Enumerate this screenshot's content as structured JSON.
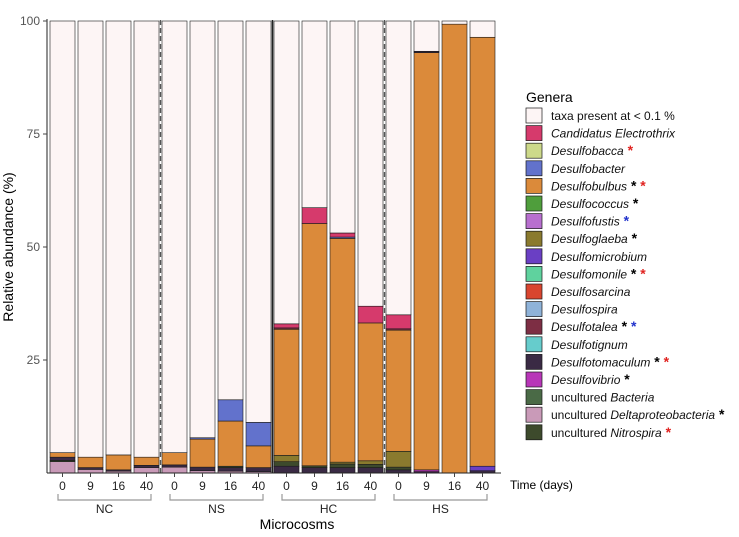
{
  "chart_data": {
    "type": "bar",
    "stacked": true,
    "xlabel": "Microcosms",
    "ylabel": "Relative abundance (%)",
    "time_label": "Time (days)",
    "ylim": [
      0,
      100
    ],
    "yticks": [
      25,
      50,
      75,
      100
    ],
    "groups": [
      "NC",
      "NS",
      "HC",
      "HS"
    ],
    "time_ticks": [
      "0",
      "9",
      "16",
      "40"
    ],
    "legend_title": "Genera",
    "legend": [
      {
        "key": "other",
        "label": "taxa present at < 0.1 %",
        "italic": "",
        "stars": [],
        "color": "#fdf5f5"
      },
      {
        "key": "candidatus",
        "label": "",
        "italic": "Candidatus Electrothrix",
        "stars": [],
        "color": "#d63a6c"
      },
      {
        "key": "desulfobacca",
        "label": "",
        "italic": "Desulfobacca",
        "stars": [
          "red"
        ],
        "color": "#cdd98a"
      },
      {
        "key": "desulfobacter",
        "label": "",
        "italic": "Desulfobacter",
        "stars": [],
        "color": "#6272cc"
      },
      {
        "key": "desulfobulbus",
        "label": "",
        "italic": "Desulfobulbus",
        "stars": [
          "black",
          "red"
        ],
        "color": "#db8a3a"
      },
      {
        "key": "desulfococcus",
        "label": "",
        "italic": "Desulfococcus",
        "stars": [
          "black"
        ],
        "color": "#4f9e3c"
      },
      {
        "key": "desulfofustis",
        "label": "",
        "italic": "Desulfofustis",
        "stars": [
          "blue"
        ],
        "color": "#b86fcf"
      },
      {
        "key": "desulfoglaeba",
        "label": "",
        "italic": "Desulfoglaeba",
        "stars": [
          "black"
        ],
        "color": "#8a7a2e"
      },
      {
        "key": "desulfomicrobium",
        "label": "",
        "italic": "Desulfomicrobium",
        "stars": [],
        "color": "#6a3fc4"
      },
      {
        "key": "desulfomonile",
        "label": "",
        "italic": "Desulfomonile",
        "stars": [
          "black",
          "red"
        ],
        "color": "#5fd29e"
      },
      {
        "key": "desulfosarcina",
        "label": "",
        "italic": "Desulfosarcina",
        "stars": [],
        "color": "#d9452f"
      },
      {
        "key": "desulfospira",
        "label": "",
        "italic": "Desulfospira",
        "stars": [],
        "color": "#8fb3d9"
      },
      {
        "key": "desulfotalea",
        "label": "",
        "italic": "Desulfotalea",
        "stars": [
          "black",
          "blue"
        ],
        "color": "#7d2e44"
      },
      {
        "key": "desulfotignum",
        "label": "",
        "italic": "Desulfotignum",
        "stars": [],
        "color": "#66cccc"
      },
      {
        "key": "desulfotomaculum",
        "label": "",
        "italic": "Desulfotomaculum",
        "stars": [
          "black",
          "red"
        ],
        "color": "#3a2a44"
      },
      {
        "key": "desulfovibrio",
        "label": "",
        "italic": "Desulfovibrio",
        "stars": [
          "black"
        ],
        "color": "#b836b8"
      },
      {
        "key": "unc_bacteria",
        "label": "uncultured ",
        "italic": "Bacteria",
        "stars": [],
        "color": "#4a6a46"
      },
      {
        "key": "unc_delta",
        "label": "uncultured ",
        "italic": "Deltaproteobacteria",
        "stars": [
          "black"
        ],
        "color": "#c99ab8"
      },
      {
        "key": "unc_nitrospira",
        "label": "uncultured ",
        "italic": "Nitrospira",
        "stars": [
          "red"
        ],
        "color": "#3d4a2c"
      }
    ],
    "bars": [
      {
        "group": "NC",
        "time": "0",
        "segments": [
          [
            "unc_delta",
            2.5
          ],
          [
            "unc_nitrospira",
            0.3
          ],
          [
            "desulfotomaculum",
            0.7
          ],
          [
            "desulfobulbus",
            1.0
          ],
          [
            "other",
            95.5
          ]
        ]
      },
      {
        "group": "NC",
        "time": "9",
        "segments": [
          [
            "unc_delta",
            0.8
          ],
          [
            "desulfotomaculum",
            0.4
          ],
          [
            "desulfobulbus",
            2.3
          ],
          [
            "other",
            96.5
          ]
        ]
      },
      {
        "group": "NC",
        "time": "16",
        "segments": [
          [
            "unc_delta",
            0.4
          ],
          [
            "desulfotomaculum",
            0.3
          ],
          [
            "desulfobulbus",
            3.3
          ],
          [
            "other",
            96.0
          ]
        ]
      },
      {
        "group": "NC",
        "time": "40",
        "segments": [
          [
            "unc_delta",
            1.2
          ],
          [
            "desulfotomaculum",
            0.5
          ],
          [
            "desulfobulbus",
            1.8
          ],
          [
            "other",
            96.5
          ]
        ]
      },
      {
        "group": "NS",
        "time": "0",
        "segments": [
          [
            "unc_delta",
            1.3
          ],
          [
            "desulfotomaculum",
            0.5
          ],
          [
            "desulfobulbus",
            2.7
          ],
          [
            "other",
            95.5
          ]
        ]
      },
      {
        "group": "NS",
        "time": "9",
        "segments": [
          [
            "unc_delta",
            0.5
          ],
          [
            "desulfotomaculum",
            0.8
          ],
          [
            "desulfobulbus",
            6.2
          ],
          [
            "desulfobacter",
            0.3
          ],
          [
            "other",
            92.2
          ]
        ]
      },
      {
        "group": "NS",
        "time": "16",
        "segments": [
          [
            "unc_delta",
            0.4
          ],
          [
            "desulfotomaculum",
            0.8
          ],
          [
            "unc_nitrospira",
            0.3
          ],
          [
            "desulfobulbus",
            10.0
          ],
          [
            "desulfobacter",
            4.7
          ],
          [
            "other",
            83.8
          ]
        ]
      },
      {
        "group": "NS",
        "time": "40",
        "segments": [
          [
            "unc_delta",
            0.3
          ],
          [
            "desulfotomaculum",
            0.9
          ],
          [
            "desulfobulbus",
            4.8
          ],
          [
            "desulfobacter",
            5.2
          ],
          [
            "other",
            88.8
          ]
        ]
      },
      {
        "group": "HC",
        "time": "0",
        "segments": [
          [
            "desulfotomaculum",
            1.5
          ],
          [
            "unc_nitrospira",
            1.0
          ],
          [
            "desulfoglaeba",
            1.4
          ],
          [
            "desulfobulbus",
            27.9
          ],
          [
            "desulfotalea",
            0.3
          ],
          [
            "candidatus",
            0.9
          ],
          [
            "other",
            67.0
          ]
        ]
      },
      {
        "group": "HC",
        "time": "9",
        "segments": [
          [
            "desulfotomaculum",
            1.2
          ],
          [
            "unc_nitrospira",
            0.4
          ],
          [
            "desulfobulbus",
            53.6
          ],
          [
            "candidatus",
            3.5
          ],
          [
            "other",
            41.3
          ]
        ]
      },
      {
        "group": "HC",
        "time": "16",
        "segments": [
          [
            "desulfotomaculum",
            1.2
          ],
          [
            "unc_nitrospira",
            0.8
          ],
          [
            "desulfoglaeba",
            0.4
          ],
          [
            "desulfobulbus",
            49.5
          ],
          [
            "desulfobacter",
            0.3
          ],
          [
            "candidatus",
            0.9
          ],
          [
            "other",
            46.9
          ]
        ]
      },
      {
        "group": "HC",
        "time": "40",
        "segments": [
          [
            "desulfotomaculum",
            1.2
          ],
          [
            "unc_nitrospira",
            0.7
          ],
          [
            "desulfoglaeba",
            0.8
          ],
          [
            "desulfobulbus",
            30.5
          ],
          [
            "candidatus",
            3.7
          ],
          [
            "other",
            63.1
          ]
        ]
      },
      {
        "group": "HS",
        "time": "0",
        "segments": [
          [
            "desulfotomaculum",
            0.7
          ],
          [
            "unc_nitrospira",
            0.6
          ],
          [
            "desulfoglaeba",
            3.5
          ],
          [
            "desulfobulbus",
            26.8
          ],
          [
            "desulfotalea",
            0.3
          ],
          [
            "candidatus",
            3.1
          ],
          [
            "other",
            65.0
          ]
        ]
      },
      {
        "group": "HS",
        "time": "9",
        "segments": [
          [
            "desulfotomaculum",
            0.3
          ],
          [
            "desulfovibrio",
            0.4
          ],
          [
            "desulfobulbus",
            92.3
          ],
          [
            "desulfotomaculum",
            0.3
          ],
          [
            "other",
            6.7
          ]
        ]
      },
      {
        "group": "HS",
        "time": "16",
        "segments": [
          [
            "desulfobulbus",
            99.3
          ],
          [
            "other",
            0.7
          ]
        ]
      },
      {
        "group": "HS",
        "time": "40",
        "segments": [
          [
            "desulfotomaculum",
            0.5
          ],
          [
            "desulfomicrobium",
            1.0
          ],
          [
            "desulfobulbus",
            94.9
          ],
          [
            "other",
            3.6
          ]
        ]
      }
    ]
  }
}
